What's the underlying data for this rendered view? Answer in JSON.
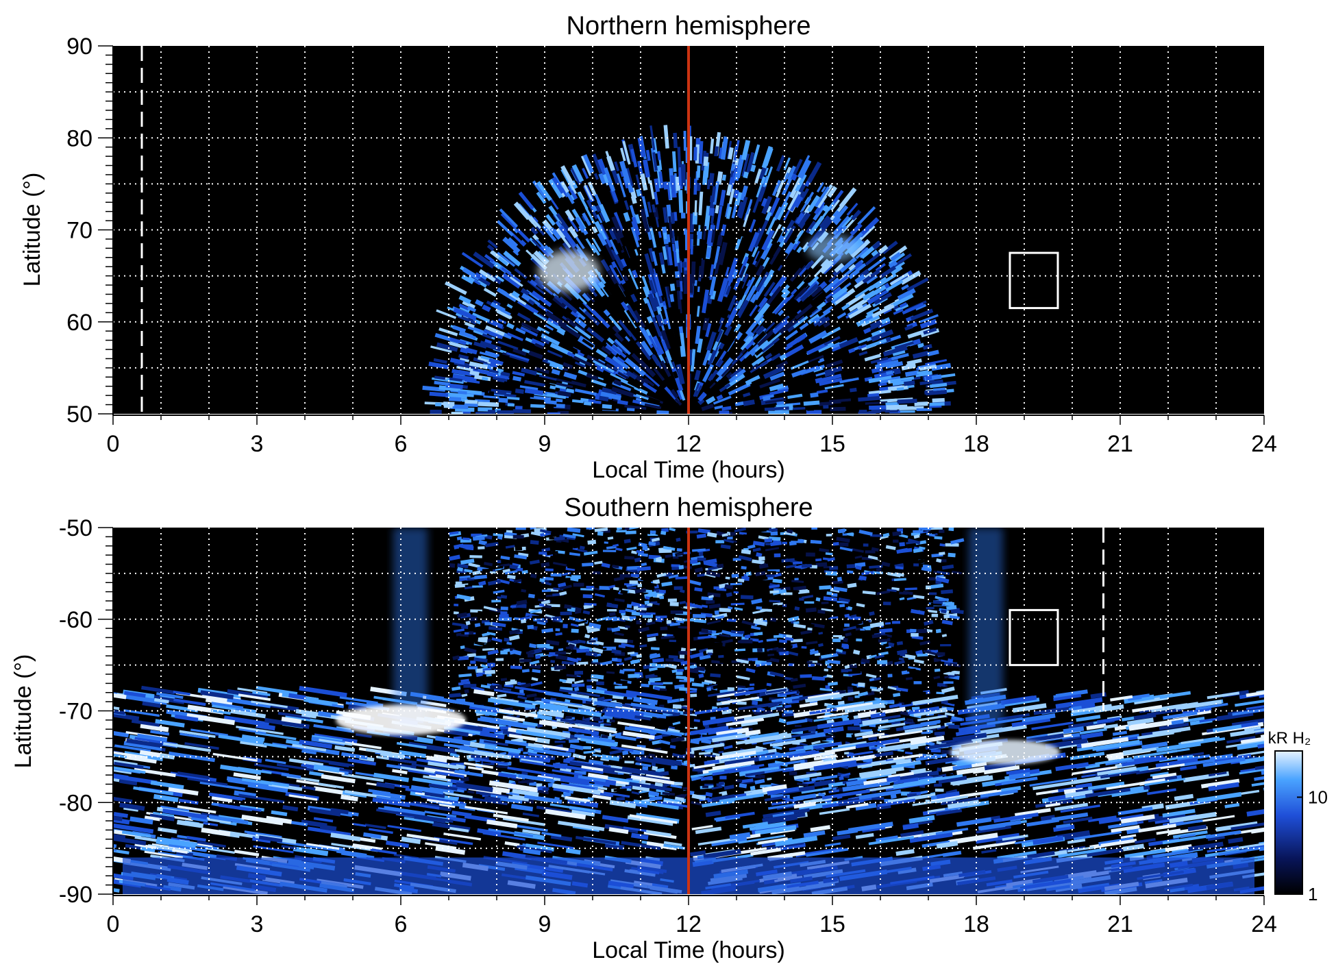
{
  "chart_data": [
    {
      "type": "heatmap",
      "title": "Northern hemisphere",
      "xlabel": "Local Time (hours)",
      "ylabel": "Latitude (°)",
      "xlim": [
        0,
        24
      ],
      "ylim": [
        50,
        90
      ],
      "xticks": [
        0,
        3,
        6,
        9,
        12,
        15,
        18,
        21,
        24
      ],
      "yticks": [
        50,
        60,
        70,
        80,
        90
      ],
      "grid": true,
      "grid_x_step_hours": 1,
      "grid_y_step_deg": 5,
      "background_color": "#000000",
      "noon_line": {
        "x": 12,
        "color": "#cc3311"
      },
      "dashed_marker_x": 0.6,
      "box": {
        "x": [
          18.7,
          19.7
        ],
        "y": [
          61.5,
          67.5
        ]
      },
      "emission": {
        "description_points": [
          {
            "lt": 7.0,
            "lat_edge": 50
          },
          {
            "lt": 9.3,
            "lat_peak": 65,
            "brightness": "bright"
          },
          {
            "lt": 12.0,
            "lat_outer": 78,
            "lat_inner": 69
          },
          {
            "lt": 15.0,
            "lat_peak": 67,
            "brightness": "moderate"
          },
          {
            "lt": 17.3,
            "lat_edge": 50
          }
        ]
      }
    },
    {
      "type": "heatmap",
      "title": "Southern hemisphere",
      "xlabel": "Local Time (hours)",
      "ylabel": "Latitude (°)",
      "xlim": [
        0,
        24
      ],
      "ylim": [
        -90,
        -50
      ],
      "xticks": [
        0,
        3,
        6,
        9,
        12,
        15,
        18,
        21,
        24
      ],
      "yticks": [
        -90,
        -80,
        -70,
        -60,
        -50
      ],
      "grid": true,
      "grid_x_step_hours": 1,
      "grid_y_step_deg": 5,
      "background_color": "#000000",
      "noon_line": {
        "x": 12,
        "color": "#cc3311"
      },
      "dashed_marker_x": 20.65,
      "box": {
        "x": [
          18.7,
          19.7
        ],
        "y": [
          -65,
          -59
        ]
      },
      "emission": {
        "description_points": [
          {
            "lt": 6.0,
            "lat_peak": -71,
            "brightness": "bright"
          },
          {
            "lt": 18.5,
            "lat_peak": -74,
            "brightness": "bright"
          },
          {
            "lt": 12.0,
            "lat_band": [
              -90,
              -85
            ]
          }
        ]
      }
    }
  ],
  "colorbar": {
    "label": "kR H₂",
    "scale": "log",
    "range": [
      1,
      30
    ],
    "ticks": [
      1,
      10
    ],
    "tick_labels": [
      "1",
      "10"
    ],
    "colors": [
      "#000000",
      "#08155a",
      "#1f4fd8",
      "#4aa3ff",
      "#e6f3ff"
    ]
  }
}
